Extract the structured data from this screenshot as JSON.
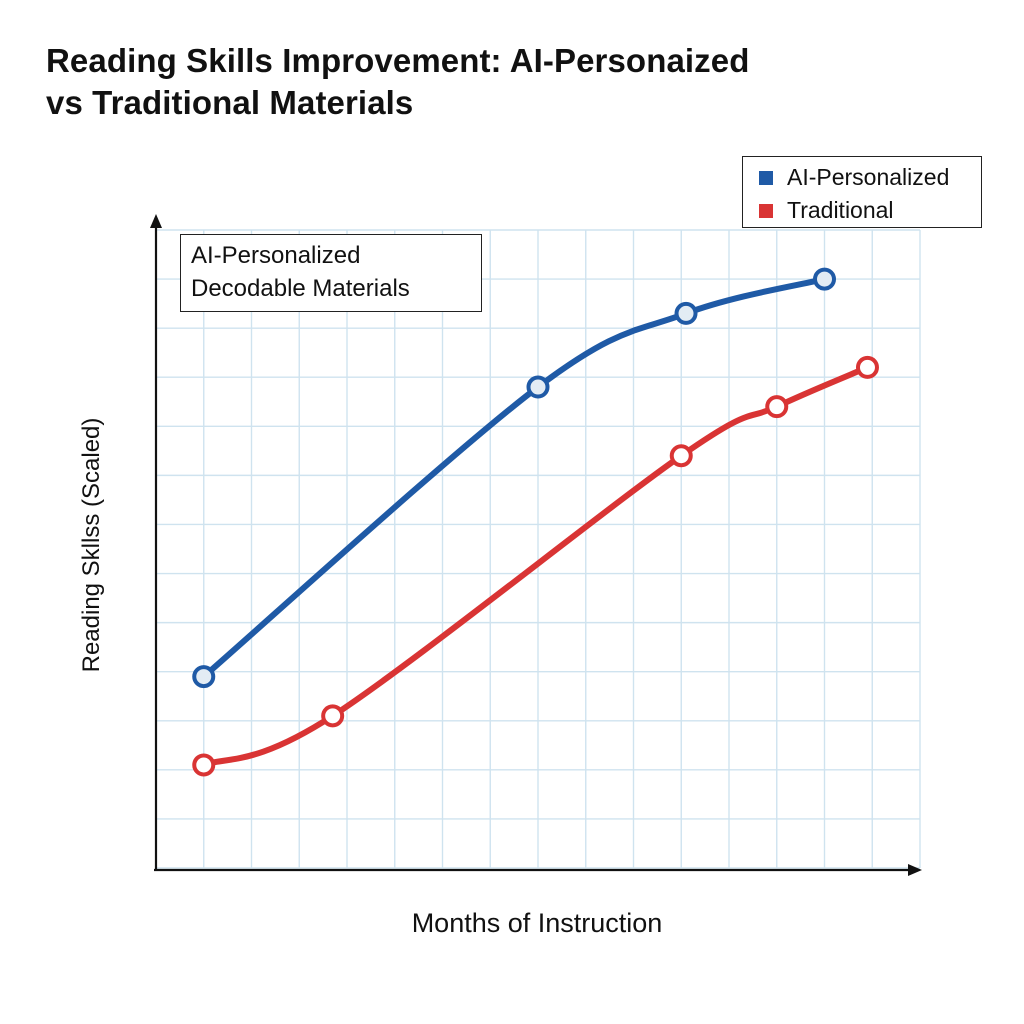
{
  "page": {
    "title_line1": "Reading Skills Improvement: AI-Personaized",
    "title_line2": "vs Traditional Materials"
  },
  "annotation": {
    "line1": "AI-Personalized",
    "line2": "Decodable Materials"
  },
  "colors": {
    "ai": "#1f5aa6",
    "traditional": "#d93434",
    "grid": "#cfe3ef",
    "axis": "#111111"
  },
  "chart_data": {
    "type": "line",
    "title": "Reading Skills Improvement: AI-Personaized vs Traditional Materials",
    "xlabel": "Months of Instruction",
    "ylabel": "Reading Skllss (Scaled)",
    "grid": true,
    "legend_position": "top-right",
    "xlim": [
      0,
      16
    ],
    "ylim": [
      0,
      13
    ],
    "x_ticks_labeled": false,
    "y_ticks_labeled": false,
    "series": [
      {
        "name": "AI-Personalized",
        "color": "#1f5aa6",
        "x": [
          1,
          8,
          11.1,
          14
        ],
        "y": [
          3.9,
          9.8,
          11.3,
          12.0
        ]
      },
      {
        "name": "Traditional",
        "color": "#d93434",
        "x": [
          1,
          3.7,
          11.0,
          13.0,
          14.9
        ],
        "y": [
          2.1,
          3.1,
          8.4,
          9.4,
          10.2
        ]
      }
    ]
  }
}
